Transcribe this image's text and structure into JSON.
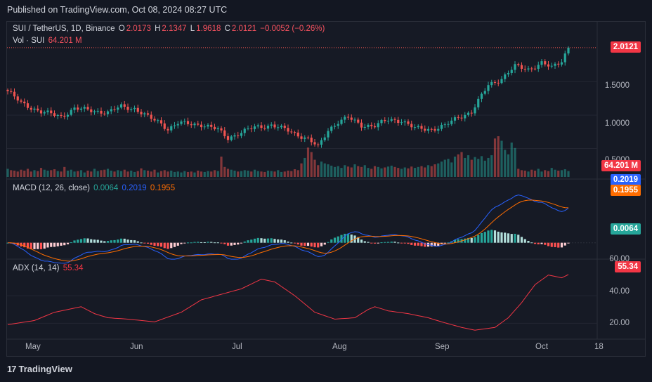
{
  "header": {
    "published": "Published on TradingView.com, Oct 08, 2024 08:27 UTC"
  },
  "footer": {
    "brand": "TradingView"
  },
  "colors": {
    "up": "#26a69a",
    "down": "#ef5350",
    "macd": "#2962ff",
    "signal": "#ff6d00",
    "adx": "#f23645",
    "bg": "#161a25"
  },
  "legend": {
    "symbol": "SUI / TetherUS, 1D, Binance",
    "o_lbl": "O",
    "o": "2.0173",
    "h_lbl": "H",
    "h": "2.1347",
    "l_lbl": "L",
    "l": "1.9618",
    "c_lbl": "C",
    "c": "2.0121",
    "change": "−0.0052 (−0.26%)",
    "vol_lbl": "Vol · SUI",
    "vol": "64.201 M",
    "macd_lbl": "MACD (12, 26, close)",
    "macd_hist": "0.0064",
    "macd_line": "0.2019",
    "macd_signal": "0.1955",
    "adx_lbl": "ADX (14, 14)",
    "adx": "55.34"
  },
  "badges": {
    "price": "2.0121",
    "volume": "64.201 M",
    "macd_line": "0.2019",
    "macd_signal": "0.1955",
    "macd_hist": "0.0064",
    "adx": "55.34"
  },
  "axes": {
    "price_ticks": [
      "1.5000",
      "1.0000",
      "0.5000"
    ],
    "adx_ticks": [
      "40.00",
      "20.00",
      "60.00"
    ],
    "dates": [
      "May",
      "Jun",
      "Jul",
      "Aug",
      "Sep",
      "Oct",
      "18"
    ]
  },
  "chart_data": {
    "type": "candlestick",
    "title": "SUI / TetherUS, 1D, Binance",
    "price_range": [
      0.2,
      2.2
    ],
    "dates_start": "2024-04-22",
    "price_anchors": [
      [
        0,
        1.36
      ],
      [
        4,
        1.18
      ],
      [
        10,
        1.05
      ],
      [
        16,
        0.98
      ],
      [
        20,
        1.1
      ],
      [
        25,
        1.07
      ],
      [
        30,
        1.04
      ],
      [
        34,
        1.13
      ],
      [
        38,
        1.1
      ],
      [
        42,
        0.97
      ],
      [
        46,
        0.88
      ],
      [
        48,
        0.79
      ],
      [
        51,
        0.88
      ],
      [
        58,
        0.86
      ],
      [
        63,
        0.78
      ],
      [
        66,
        0.66
      ],
      [
        70,
        0.74
      ],
      [
        74,
        0.82
      ],
      [
        79,
        0.85
      ],
      [
        84,
        0.77
      ],
      [
        90,
        0.64
      ],
      [
        93,
        0.52
      ],
      [
        96,
        0.78
      ],
      [
        99,
        0.9
      ],
      [
        102,
        0.96
      ],
      [
        106,
        0.85
      ],
      [
        110,
        0.84
      ],
      [
        114,
        0.93
      ],
      [
        118,
        0.92
      ],
      [
        122,
        0.8
      ],
      [
        127,
        0.79
      ],
      [
        131,
        0.84
      ],
      [
        135,
        0.97
      ],
      [
        139,
        1.05
      ],
      [
        144,
        1.45
      ],
      [
        148,
        1.55
      ],
      [
        152,
        1.73
      ],
      [
        156,
        1.69
      ],
      [
        160,
        1.78
      ],
      [
        163,
        1.71
      ],
      [
        166,
        1.82
      ],
      [
        168,
        2.02
      ]
    ],
    "volume_m": [
      18,
      15,
      14,
      12,
      16,
      14,
      18,
      12,
      15,
      13,
      20,
      16,
      14,
      15,
      17,
      13,
      12,
      22,
      14,
      16,
      12,
      13,
      15,
      10,
      14,
      12,
      18,
      13,
      15,
      16,
      18,
      14,
      12,
      15,
      13,
      16,
      12,
      14,
      11,
      13,
      19,
      15,
      14,
      12,
      16,
      10,
      13,
      15,
      12,
      14,
      11,
      12,
      10,
      13,
      11,
      12,
      10,
      14,
      12,
      11,
      13,
      12,
      15,
      13,
      45,
      22,
      18,
      16,
      14,
      12,
      13,
      15,
      14,
      12,
      16,
      13,
      12,
      11,
      14,
      13,
      12,
      15,
      11,
      12,
      14,
      13,
      17,
      15,
      30,
      42,
      65,
      55,
      38,
      26,
      34,
      30,
      28,
      25,
      22,
      24,
      20,
      26,
      23,
      21,
      28,
      24,
      22,
      26,
      20,
      18,
      24,
      22,
      19,
      21,
      23,
      25,
      22,
      20,
      18,
      21,
      19,
      23,
      20,
      22,
      24,
      21,
      26,
      24,
      28,
      30,
      34,
      38,
      40,
      32,
      45,
      50,
      55,
      42,
      48,
      38,
      44,
      40,
      46,
      36,
      42,
      48,
      85,
      90,
      80,
      60,
      50,
      76,
      64
    ],
    "macd": {
      "line": 0.2019,
      "signal": 0.1955,
      "histogram": 0.0064,
      "range": [
        -0.06,
        0.26
      ]
    },
    "adx": {
      "value": 55.34,
      "range": [
        10,
        65
      ]
    }
  }
}
